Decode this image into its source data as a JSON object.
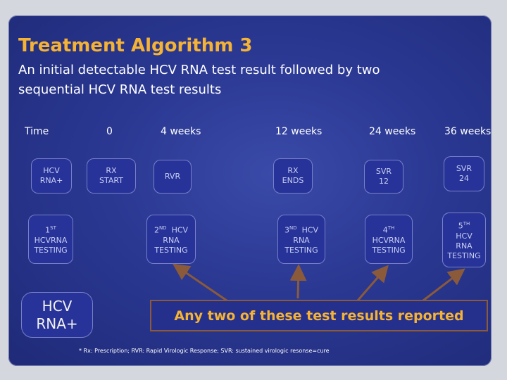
{
  "title": "Treatment Algorithm 3",
  "subtitle": "An initial detectable HCV RNA test result followed by two sequential HCV RNA test results",
  "headers": {
    "time": "Time",
    "t0": "0",
    "t4": "4 weeks",
    "t12": "12 weeks",
    "t24": "24 weeks",
    "t36": "36 weeks"
  },
  "row1": {
    "hcv_rna_plus": [
      "HCV",
      "RNA+"
    ],
    "rx_start": [
      "RX",
      "START"
    ],
    "rvr": "RVR",
    "rx_ends": [
      "RX",
      "ENDS"
    ],
    "svr12": [
      "SVR",
      "12"
    ],
    "svr24": [
      "SVR",
      "24"
    ]
  },
  "row2": {
    "first": {
      "num": "1",
      "sup": "ST",
      "lines": [
        "HCVRNA",
        "TESTING"
      ]
    },
    "second": {
      "num": "2",
      "sup": "ND",
      "after": "HCV",
      "lines": [
        "RNA",
        "TESTING"
      ]
    },
    "third": {
      "num": "3",
      "sup": "ND",
      "after": "HCV",
      "lines": [
        "RNA",
        "TESTING"
      ]
    },
    "fourth": {
      "num": "4",
      "sup": "TH",
      "lines": [
        "HCVRNA",
        "TESTING"
      ]
    },
    "fifth": {
      "num": "5",
      "sup": "TH",
      "lines": [
        "HCV",
        "RNA",
        "TESTING"
      ]
    }
  },
  "big_box": [
    "HCV",
    "RNA+"
  ],
  "result_text": "Any two of these test results reported",
  "footnote": "* Rx: Prescription; RVR: Rapid Virologic Response; SVR: sustained virologic resonse=cure",
  "colors": {
    "title": "#f5b335",
    "arrow": "#8a5a3a",
    "box": "#273398"
  }
}
